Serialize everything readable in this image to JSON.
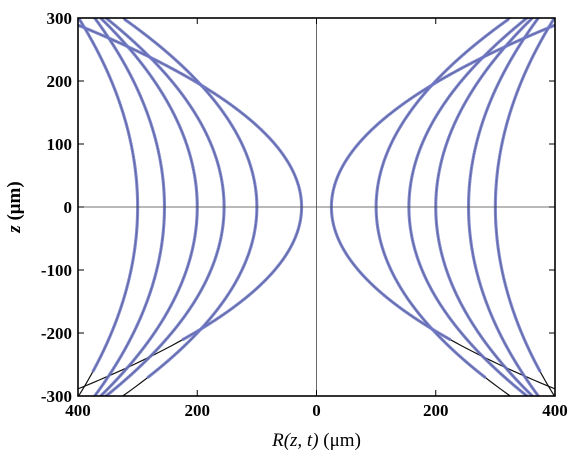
{
  "chart_data": {
    "type": "line",
    "xlabel": {
      "main": "R",
      "italic_args": "(z, t)",
      "unit": " (μm)"
    },
    "ylabel": {
      "main": "z",
      "unit": " (μm)"
    },
    "xlim": [
      -400,
      400
    ],
    "ylim": [
      -300,
      300
    ],
    "x_ticks": [
      {
        "value": -400,
        "label": "400"
      },
      {
        "value": -200,
        "label": "200"
      },
      {
        "value": 0,
        "label": "0"
      },
      {
        "value": 200,
        "label": "200"
      },
      {
        "value": 400,
        "label": "400"
      }
    ],
    "y_ticks": [
      {
        "value": 300,
        "label": "300"
      },
      {
        "value": 200,
        "label": "200"
      },
      {
        "value": 100,
        "label": "100"
      },
      {
        "value": 0,
        "label": "0"
      },
      {
        "value": -100,
        "label": "-100"
      },
      {
        "value": -200,
        "label": "-200"
      },
      {
        "value": -300,
        "label": "-300"
      }
    ],
    "grid": false,
    "zero_lines": true,
    "colors": {
      "model": "#111111",
      "data": "#6f78c6"
    },
    "model_curves": [
      {
        "r0": 25,
        "k": 0.0045
      },
      {
        "r0": 100,
        "k": 0.0025
      },
      {
        "r0": 155,
        "k": 0.0022
      },
      {
        "r0": 200,
        "k": 0.0018
      },
      {
        "r0": 255,
        "k": 0.0013
      },
      {
        "r0": 300,
        "k": 0.0011
      }
    ],
    "data_curves": [
      {
        "r0": 25,
        "k": 0.0045,
        "z_range": [
          -210,
          300
        ]
      },
      {
        "r0": 100,
        "k": 0.0025,
        "z_range": [
          -270,
          300
        ]
      },
      {
        "r0": 155,
        "k": 0.0022,
        "z_range": [
          -300,
          300
        ]
      },
      {
        "r0": 200,
        "k": 0.0018,
        "z_range": [
          -300,
          300
        ]
      },
      {
        "r0": 255,
        "k": 0.0013,
        "z_range": [
          -300,
          300
        ]
      },
      {
        "r0": 300,
        "k": 0.0011,
        "z_range": [
          -260,
          300
        ]
      }
    ]
  }
}
